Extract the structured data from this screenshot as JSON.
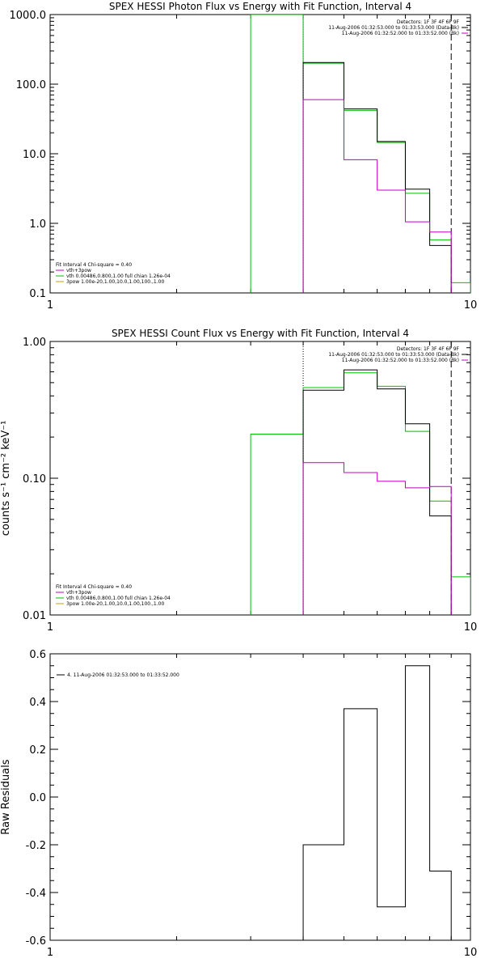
{
  "chart_data": [
    {
      "type": "line",
      "title": "SPEX HESSI Photon Flux vs Energy with Fit Function, Interval 4",
      "xscale": "log",
      "yscale": "log",
      "xlim": [
        1,
        10
      ],
      "ylim": [
        0.1,
        1000
      ],
      "x_ticks": [
        "1",
        "10"
      ],
      "y_ticks": [
        "0.1",
        "1.0",
        "10.0",
        "100.0",
        "1000.0"
      ],
      "ylabel": "",
      "legend_right": [
        {
          "text": "Detectors: 1F 3F 4F 6F 9F",
          "color": "#000000"
        },
        {
          "text": "11-Aug-2006 01:32:53.000 to 01:33:53.000 (Data-Bk)",
          "color": "#000000"
        },
        {
          "text": "11-Aug-2006 01:32:52.000 to 01:33:52.000 (Bk)",
          "color": "#c000c0"
        }
      ],
      "legend_left": [
        {
          "text": "Fit Interval 4   Chi-square = 0.40",
          "color": "#000000"
        },
        {
          "text": "vth+3pow",
          "color": "#c000c0"
        },
        {
          "text": "vth 0.00486,0.800,1.00   full chian 1.26e-04",
          "color": "#00c000"
        },
        {
          "text": "3pow 1.00e-20,1.00,10.0,1.00,100.,1.00",
          "color": "#c0a000"
        }
      ],
      "series": [
        {
          "name": "vth+3pow",
          "color": "#00c000",
          "edges": [
            3.0,
            4.0,
            5.0,
            6.0,
            7.0,
            8.0,
            9.0,
            10.0
          ],
          "values": [
            1000,
            200,
            42,
            14.5,
            2.7,
            0.58,
            0.14
          ]
        },
        {
          "name": "11-Aug-2006 01:32:53.000 to 01:33:53.000 (Data-Bk)",
          "color": "#000000",
          "edges": [
            4.0,
            5.0,
            6.0,
            7.0,
            8.0,
            9.0
          ],
          "values": [
            205,
            44,
            15,
            3.1,
            0.48
          ]
        },
        {
          "name": "11-Aug-2006 01:32:52.000 to 01:33:52.000 (Bk)",
          "color": "#c000c0",
          "edges": [
            4.0,
            5.0,
            6.0,
            7.0,
            8.0,
            9.0
          ],
          "values": [
            60,
            8.2,
            3.0,
            1.05,
            0.75
          ]
        }
      ],
      "vlines": [
        {
          "x": 4.0,
          "style": "dotted"
        },
        {
          "x": 9.0,
          "style": "dashed"
        }
      ]
    },
    {
      "type": "line",
      "title": "SPEX HESSI Count Flux vs Energy with Fit Function, Interval 4",
      "xscale": "log",
      "yscale": "log",
      "xlim": [
        1,
        10
      ],
      "ylim": [
        0.01,
        1.0
      ],
      "x_ticks": [
        "1",
        "10"
      ],
      "y_ticks": [
        "0.01",
        "0.10",
        "1.00"
      ],
      "ylabel": "counts s⁻¹ cm⁻² keV⁻¹",
      "legend_right": [
        {
          "text": "Detectors: 1F 3F 4F 6F 9F",
          "color": "#000000"
        },
        {
          "text": "11-Aug-2006 01:32:53.000 to 01:33:53.000 (Data-Bk)",
          "color": "#000000"
        },
        {
          "text": "11-Aug-2006 01:32:52.000 to 01:33:52.000 (Bk)",
          "color": "#c000c0"
        }
      ],
      "legend_left": [
        {
          "text": "Fit Interval 4   Chi-square = 0.40",
          "color": "#000000"
        },
        {
          "text": "vth+3pow",
          "color": "#c000c0"
        },
        {
          "text": "vth 0.00486,0.800,1.00   full chian 1.26e-04",
          "color": "#00c000"
        },
        {
          "text": "3pow 1.00e-20,1.00,10.0,1.00,100.,1.00",
          "color": "#c0a000"
        }
      ],
      "series": [
        {
          "name": "vth+3pow",
          "color": "#00c000",
          "edges": [
            3.0,
            4.0,
            5.0,
            6.0,
            7.0,
            8.0,
            9.0,
            10.0
          ],
          "values": [
            0.21,
            0.46,
            0.59,
            0.47,
            0.22,
            0.068,
            0.019
          ]
        },
        {
          "name": "11-Aug-2006 01:32:53.000 to 01:33:53.000 (Data-Bk)",
          "color": "#000000",
          "edges": [
            4.0,
            5.0,
            6.0,
            7.0,
            8.0,
            9.0
          ],
          "values": [
            0.44,
            0.62,
            0.45,
            0.25,
            0.053
          ]
        },
        {
          "name": "11-Aug-2006 01:32:52.000 to 01:33:52.000 (Bk)",
          "color": "#c000c0",
          "edges": [
            4.0,
            5.0,
            6.0,
            7.0,
            8.0,
            9.0
          ],
          "values": [
            0.13,
            0.11,
            0.095,
            0.085,
            0.087
          ]
        }
      ],
      "vlines": [
        {
          "x": 4.0,
          "style": "dotted"
        },
        {
          "x": 9.0,
          "style": "dashed"
        }
      ]
    },
    {
      "type": "line",
      "title": "",
      "xscale": "log",
      "yscale": "linear",
      "xlim": [
        1,
        10
      ],
      "ylim": [
        -0.6,
        0.6
      ],
      "x_ticks": [
        "1",
        "10"
      ],
      "y_ticks": [
        "-0.6",
        "-0.4",
        "-0.2",
        "0.0",
        "0.2",
        "0.4",
        "0.6"
      ],
      "ylabel": "Raw Residuals",
      "legend_right": [],
      "legend_left": [],
      "legend_top": [
        {
          "text": "4. 11-Aug-2006 01:32:53.000 to 01:33:52.000",
          "color": "#000000"
        }
      ],
      "series": [
        {
          "name": "4. 11-Aug-2006 01:32:53.000 to 01:33:52.000",
          "color": "#000000",
          "edges": [
            4.0,
            5.0,
            6.0,
            7.0,
            8.0,
            9.0
          ],
          "values": [
            -0.2,
            0.37,
            -0.46,
            0.55,
            -0.31
          ]
        }
      ],
      "vlines": []
    }
  ]
}
